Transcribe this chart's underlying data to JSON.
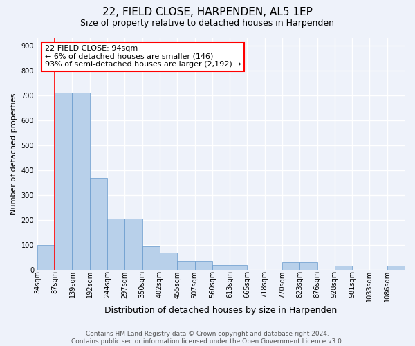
{
  "title": "22, FIELD CLOSE, HARPENDEN, AL5 1EP",
  "subtitle": "Size of property relative to detached houses in Harpenden",
  "xlabel": "Distribution of detached houses by size in Harpenden",
  "ylabel": "Number of detached properties",
  "bar_labels": [
    "34sqm",
    "87sqm",
    "139sqm",
    "192sqm",
    "244sqm",
    "297sqm",
    "350sqm",
    "402sqm",
    "455sqm",
    "507sqm",
    "560sqm",
    "613sqm",
    "665sqm",
    "718sqm",
    "770sqm",
    "823sqm",
    "876sqm",
    "928sqm",
    "981sqm",
    "1033sqm",
    "1086sqm"
  ],
  "bar_values": [
    100,
    710,
    710,
    370,
    205,
    205,
    95,
    70,
    35,
    35,
    20,
    20,
    0,
    0,
    30,
    30,
    0,
    15,
    0,
    0,
    15
  ],
  "bar_color": "#b8d0ea",
  "bar_edge_color": "#6699cc",
  "annotation_box_text": "22 FIELD CLOSE: 94sqm\n← 6% of detached houses are smaller (146)\n93% of semi-detached houses are larger (2,192) →",
  "red_line_x": 1,
  "ylim": [
    0,
    930
  ],
  "yticks": [
    0,
    100,
    200,
    300,
    400,
    500,
    600,
    700,
    800,
    900
  ],
  "background_color": "#eef2fa",
  "plot_bg_color": "#eef2fa",
  "grid_color": "#ffffff",
  "footer_line1": "Contains HM Land Registry data © Crown copyright and database right 2024.",
  "footer_line2": "Contains public sector information licensed under the Open Government Licence v3.0.",
  "title_fontsize": 11,
  "subtitle_fontsize": 9,
  "xlabel_fontsize": 9,
  "ylabel_fontsize": 8,
  "tick_fontsize": 7,
  "footer_fontsize": 6.5,
  "annot_fontsize": 8
}
